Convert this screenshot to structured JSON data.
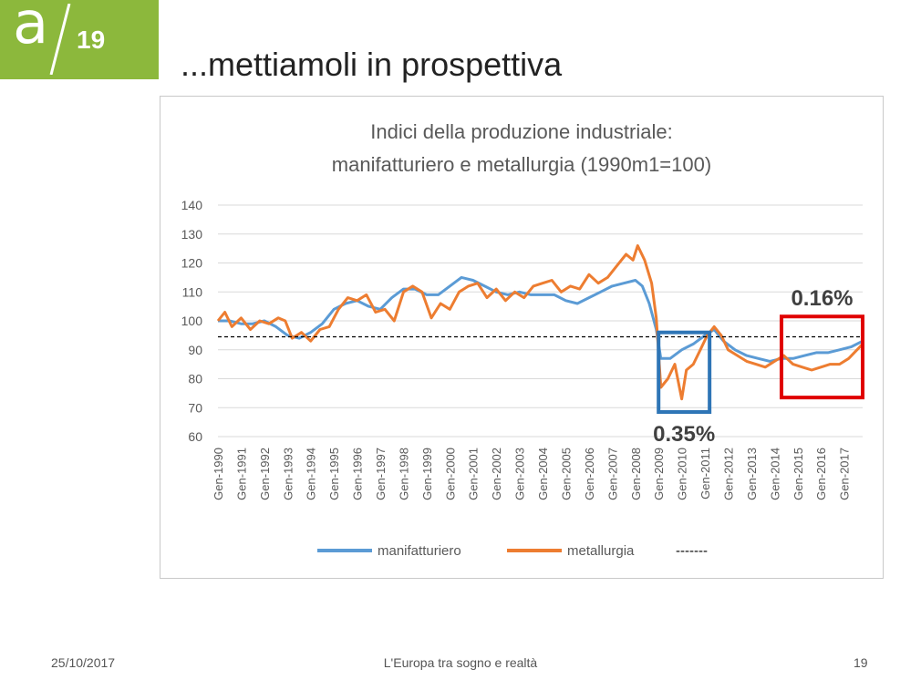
{
  "logo": {
    "letter": "a",
    "number": "19",
    "color": "#8cb83c"
  },
  "slide": {
    "title": "...mettiamoli in prospettiva"
  },
  "footer": {
    "date": "25/10/2017",
    "center": "L'Europa tra sogno e realtà",
    "page": "19"
  },
  "chart_data": {
    "type": "line",
    "title": [
      "Indici della produzione industriale:",
      "manifatturiero e metallurgia (1990m1=100)"
    ],
    "xlabel": "",
    "ylabel": "",
    "ylim": [
      60,
      140
    ],
    "yticks": [
      60,
      70,
      80,
      90,
      100,
      110,
      120,
      130,
      140
    ],
    "xlim": [
      1990,
      2017.8
    ],
    "categories": [
      "Gen-1990",
      "Gen-1991",
      "Gen-1992",
      "Gen-1993",
      "Gen-1994",
      "Gen-1995",
      "Gen-1996",
      "Gen-1997",
      "Gen-1998",
      "Gen-1999",
      "Gen-2000",
      "Gen-2001",
      "Gen-2002",
      "Gen-2003",
      "Gen-2004",
      "Gen-2005",
      "Gen-2006",
      "Gen-2007",
      "Gen-2008",
      "Gen-2009",
      "Gen-2010",
      "Gen-2011",
      "Gen-2012",
      "Gen-2013",
      "Gen-2014",
      "Gen-2015",
      "Gen-2016",
      "Gen-2017"
    ],
    "grid": true,
    "legend_position": "bottom",
    "series": [
      {
        "name": "manifatturiero",
        "color": "#5b9bd5",
        "x": [
          1990,
          1990.5,
          1991,
          1991.5,
          1992,
          1992.5,
          1993,
          1993.5,
          1994,
          1994.5,
          1995,
          1995.5,
          1996,
          1996.5,
          1997,
          1997.5,
          1998,
          1998.5,
          1999,
          1999.5,
          2000,
          2000.5,
          2001,
          2001.5,
          2002,
          2002.5,
          2003,
          2003.5,
          2004,
          2004.5,
          2005,
          2005.5,
          2006,
          2006.5,
          2007,
          2007.5,
          2008,
          2008.3,
          2008.6,
          2008.9,
          2009.1,
          2009.5,
          2010,
          2010.5,
          2011,
          2011.4,
          2011.8,
          2012.3,
          2012.8,
          2013.3,
          2013.8,
          2014.3,
          2014.8,
          2015.3,
          2015.8,
          2016.3,
          2016.8,
          2017.3,
          2017.8
        ],
        "values": [
          100,
          100,
          99,
          99,
          100,
          98,
          95,
          94,
          96,
          99,
          104,
          106,
          107,
          105,
          104,
          108,
          111,
          111,
          109,
          109,
          112,
          115,
          114,
          112,
          110,
          109,
          110,
          109,
          109,
          109,
          107,
          106,
          108,
          110,
          112,
          113,
          114,
          112,
          106,
          97,
          87,
          87,
          90,
          92,
          95,
          97,
          93,
          90,
          88,
          87,
          86,
          87,
          87,
          88,
          89,
          89,
          90,
          91,
          93
        ]
      },
      {
        "name": "metallurgia",
        "color": "#ed7d31",
        "x": [
          1990,
          1990.3,
          1990.6,
          1991,
          1991.4,
          1991.8,
          1992.2,
          1992.6,
          1992.9,
          1993.2,
          1993.6,
          1994,
          1994.4,
          1994.8,
          1995.2,
          1995.6,
          1996,
          1996.4,
          1996.8,
          1997.2,
          1997.6,
          1998,
          1998.4,
          1998.8,
          1999.2,
          1999.6,
          2000,
          2000.4,
          2000.8,
          2001.2,
          2001.6,
          2002,
          2002.4,
          2002.8,
          2003.2,
          2003.6,
          2004,
          2004.4,
          2004.8,
          2005.2,
          2005.6,
          2006,
          2006.4,
          2006.8,
          2007.2,
          2007.6,
          2007.9,
          2008.1,
          2008.4,
          2008.7,
          2008.9,
          2009.1,
          2009.4,
          2009.7,
          2010,
          2010.2,
          2010.5,
          2010.8,
          2011.1,
          2011.4,
          2011.7,
          2012,
          2012.4,
          2012.8,
          2013.2,
          2013.6,
          2014,
          2014.4,
          2014.8,
          2015.2,
          2015.6,
          2016,
          2016.4,
          2016.8,
          2017.2,
          2017.8
        ],
        "values": [
          100,
          103,
          98,
          101,
          97,
          100,
          99,
          101,
          100,
          94,
          96,
          93,
          97,
          98,
          104,
          108,
          107,
          109,
          103,
          104,
          100,
          110,
          112,
          110,
          101,
          106,
          104,
          110,
          112,
          113,
          108,
          111,
          107,
          110,
          108,
          112,
          113,
          114,
          110,
          112,
          111,
          116,
          113,
          115,
          119,
          123,
          121,
          126,
          121,
          113,
          101,
          77,
          80,
          85,
          73,
          83,
          85,
          90,
          95,
          98,
          95,
          90,
          88,
          86,
          85,
          84,
          86,
          88,
          85,
          84,
          83,
          84,
          85,
          85,
          87,
          92
        ]
      },
      {
        "name": "-------",
        "color": "#000000",
        "x": [
          1990,
          2017.8
        ],
        "values": [
          94.5,
          94.5
        ]
      }
    ],
    "annotations": [
      {
        "label": "0.35%",
        "box": {
          "x": [
            2009,
            2011.2
          ],
          "y": [
            68.5,
            96
          ]
        },
        "color": "#2e75b6"
      },
      {
        "label": "0.16%",
        "box": {
          "x": [
            2014.3,
            2017.8
          ],
          "y": [
            73.5,
            101.5
          ]
        },
        "color": "#e00000"
      }
    ]
  }
}
